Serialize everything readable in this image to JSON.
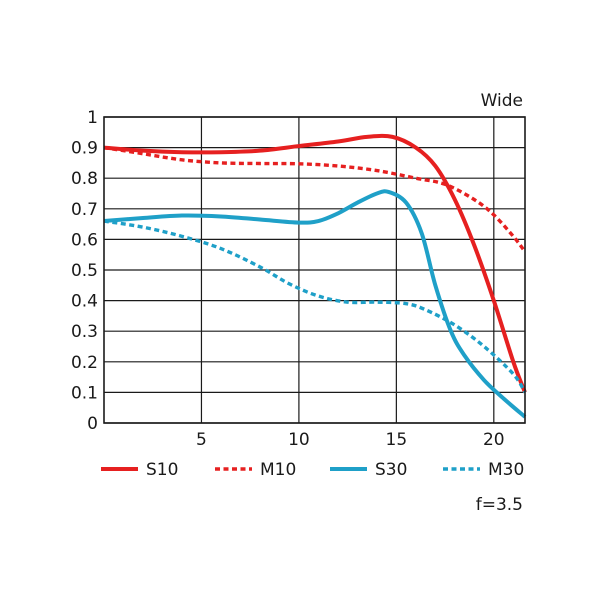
{
  "chart_data": {
    "type": "line",
    "title": "Wide",
    "note": "f=3.5",
    "xlim": [
      0,
      21.6
    ],
    "ylim": [
      0,
      1
    ],
    "x_ticks": [
      5,
      10,
      15,
      20
    ],
    "y_ticks": [
      0,
      0.1,
      0.2,
      0.3,
      0.4,
      0.5,
      0.6,
      0.7,
      0.8,
      0.9,
      1
    ],
    "y_tick_labels": [
      "0",
      "0.1",
      "0.2",
      "0.3",
      "0.4",
      "0.5",
      "0.6",
      "0.7",
      "0.8",
      "0.9",
      "1"
    ],
    "grid": true,
    "legend_position": "bottom",
    "series": [
      {
        "name": "S10",
        "color": "#e62020",
        "style": "solid",
        "points": [
          [
            0,
            0.9
          ],
          [
            2,
            0.89
          ],
          [
            4,
            0.885
          ],
          [
            6,
            0.885
          ],
          [
            8,
            0.89
          ],
          [
            10,
            0.905
          ],
          [
            12,
            0.92
          ],
          [
            13.5,
            0.935
          ],
          [
            14.8,
            0.935
          ],
          [
            16,
            0.9
          ],
          [
            17,
            0.84
          ],
          [
            18,
            0.73
          ],
          [
            19,
            0.58
          ],
          [
            20,
            0.4
          ],
          [
            21,
            0.2
          ],
          [
            21.6,
            0.1
          ]
        ]
      },
      {
        "name": "M10",
        "color": "#e62020",
        "style": "dashed",
        "points": [
          [
            0,
            0.9
          ],
          [
            2,
            0.88
          ],
          [
            4,
            0.86
          ],
          [
            6,
            0.85
          ],
          [
            8,
            0.848
          ],
          [
            10,
            0.847
          ],
          [
            12,
            0.84
          ],
          [
            14,
            0.825
          ],
          [
            16,
            0.8
          ],
          [
            17.5,
            0.78
          ],
          [
            19,
            0.73
          ],
          [
            20,
            0.68
          ],
          [
            21,
            0.61
          ],
          [
            21.6,
            0.56
          ]
        ]
      },
      {
        "name": "S30",
        "color": "#1fa0c8",
        "style": "solid",
        "points": [
          [
            0,
            0.66
          ],
          [
            2,
            0.67
          ],
          [
            4,
            0.678
          ],
          [
            6,
            0.675
          ],
          [
            8,
            0.665
          ],
          [
            10,
            0.655
          ],
          [
            11,
            0.66
          ],
          [
            12,
            0.685
          ],
          [
            13,
            0.72
          ],
          [
            14,
            0.75
          ],
          [
            14.6,
            0.755
          ],
          [
            15.5,
            0.72
          ],
          [
            16.3,
            0.62
          ],
          [
            17,
            0.45
          ],
          [
            17.8,
            0.3
          ],
          [
            18.5,
            0.22
          ],
          [
            19.5,
            0.14
          ],
          [
            20.5,
            0.08
          ],
          [
            21.6,
            0.02
          ]
        ]
      },
      {
        "name": "M30",
        "color": "#1fa0c8",
        "style": "dashed",
        "points": [
          [
            0,
            0.66
          ],
          [
            2,
            0.64
          ],
          [
            4,
            0.61
          ],
          [
            6,
            0.57
          ],
          [
            8,
            0.51
          ],
          [
            9.5,
            0.455
          ],
          [
            11,
            0.415
          ],
          [
            12.5,
            0.395
          ],
          [
            14,
            0.395
          ],
          [
            15.5,
            0.39
          ],
          [
            16.5,
            0.37
          ],
          [
            18,
            0.32
          ],
          [
            19.5,
            0.25
          ],
          [
            21,
            0.16
          ],
          [
            21.6,
            0.1
          ]
        ]
      }
    ]
  }
}
